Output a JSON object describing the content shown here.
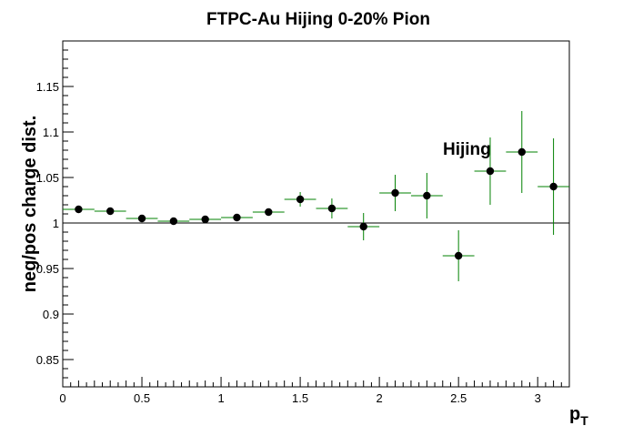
{
  "chart_data": {
    "type": "scatter",
    "title": "FTPC-Au Hijing 0-20% Pion",
    "xlabel": "p",
    "xlabel_sub": "T",
    "ylabel": "neg/pos charge dist.",
    "annotation": "Hijing",
    "xlim": [
      0,
      3.2
    ],
    "ylim": [
      0.82,
      1.2
    ],
    "x_ticks": [
      "0",
      "0.5",
      "1",
      "1.5",
      "2",
      "2.5",
      "3"
    ],
    "y_ticks": [
      "0.85",
      "0.9",
      "0.95",
      "1",
      "1.05",
      "1.1",
      "1.15"
    ],
    "reference_line": 1.0,
    "grid": false,
    "colors": {
      "marker": "#000000",
      "error_bars": "#008000",
      "reference_line": "#000000"
    },
    "series": [
      {
        "x": [
          0.1,
          0.3,
          0.5,
          0.7,
          0.9,
          1.1,
          1.3,
          1.5,
          1.7,
          1.9,
          2.1,
          2.3,
          2.5,
          2.7,
          2.9,
          3.1
        ],
        "values": [
          1.015,
          1.013,
          1.005,
          1.002,
          1.004,
          1.006,
          1.012,
          1.026,
          1.016,
          0.996,
          1.033,
          1.03,
          0.964,
          1.057,
          1.078,
          1.04
        ],
        "yerr": [
          0.002,
          0.002,
          0.002,
          0.002,
          0.002,
          0.002,
          0.004,
          0.008,
          0.011,
          0.015,
          0.02,
          0.025,
          0.028,
          0.037,
          0.045,
          0.053
        ],
        "xerr": 0.1
      }
    ]
  }
}
